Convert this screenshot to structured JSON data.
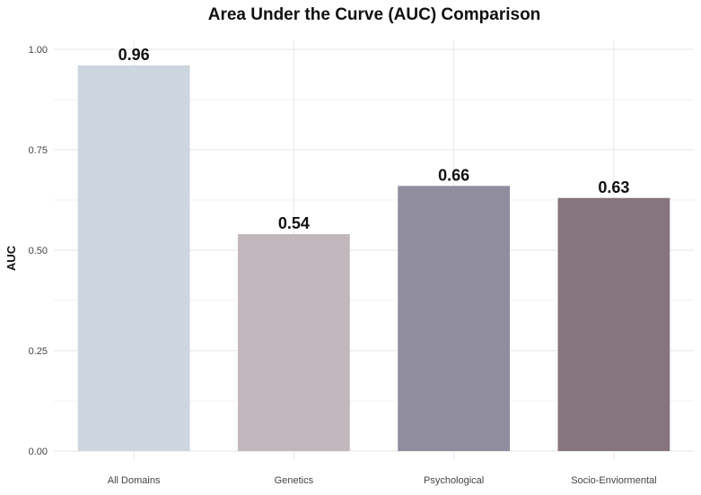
{
  "chart_data": {
    "type": "bar",
    "title": "Area Under the Curve (AUC) Comparison",
    "xlabel": "",
    "ylabel": "AUC",
    "categories": [
      "All Domains",
      "Genetics",
      "Psychological",
      "Socio-Enviormental"
    ],
    "values": [
      0.96,
      0.54,
      0.66,
      0.63
    ],
    "data_labels": [
      "0.96",
      "0.54",
      "0.66",
      "0.63"
    ],
    "ylim": [
      0,
      1.05
    ],
    "yticks": [
      0,
      0.25,
      0.5,
      0.75,
      1.0
    ],
    "ytick_labels": [
      "0.00",
      "0.25",
      "0.50",
      "0.75",
      "1.00"
    ],
    "grid": true,
    "legend": "none",
    "colors": [
      "#cdd6de",
      "#c1b7bc",
      "#908d9e",
      "#86757f"
    ]
  }
}
